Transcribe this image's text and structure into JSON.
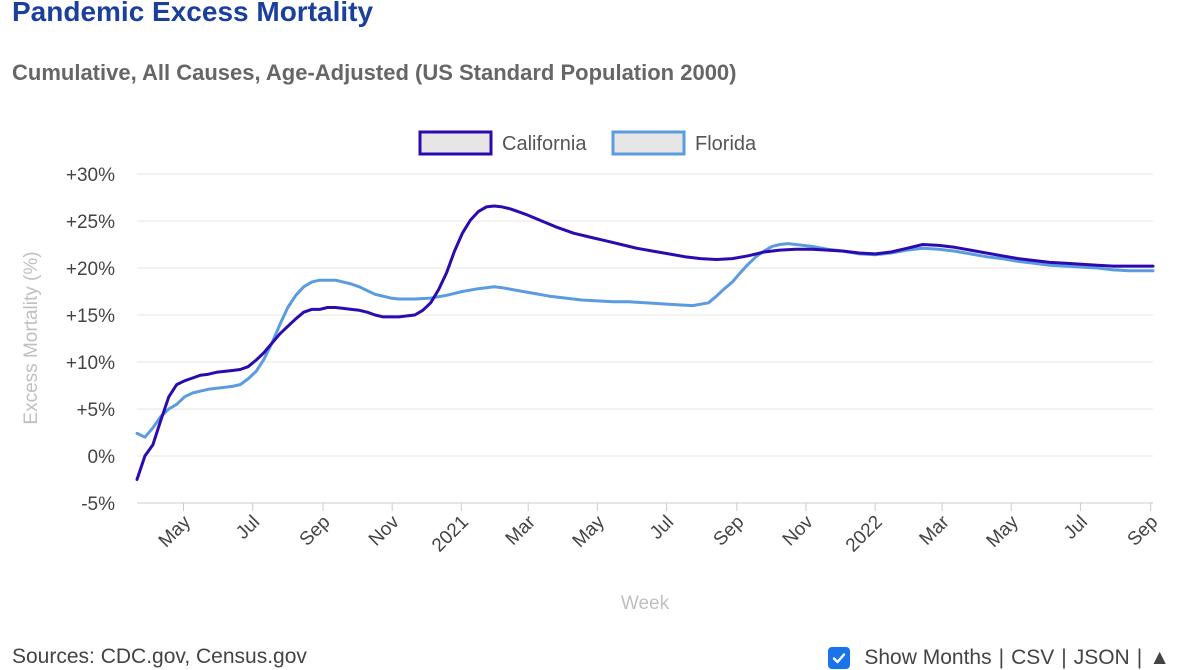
{
  "header": {
    "title": "Pandemic Excess Mortality",
    "subtitle": "Cumulative, All Causes, Age-Adjusted (US Standard Population 2000)"
  },
  "footer": {
    "sources": "Sources: CDC.gov, Census.gov",
    "show_months_label": "Show Months",
    "show_months_checked": true,
    "csv_label": "CSV",
    "json_label": "JSON",
    "separator": "|",
    "scroll_top_icon": "▲"
  },
  "colors": {
    "california": "#2b0ab0",
    "florida": "#5b9bdf",
    "grid": "#e6e6e6",
    "axis_text": "#444444",
    "axis_title": "#c0c0c0"
  },
  "chart_data": {
    "type": "line",
    "xlabel": "Week",
    "ylabel": "Excess Mortality (%)",
    "ylim": [
      -5,
      30
    ],
    "xlim": [
      "2020-03-21",
      "2022-09-03"
    ],
    "grid": true,
    "legend_position": "top-center",
    "y_ticks": [
      {
        "value": 30,
        "label": "+30%"
      },
      {
        "value": 25,
        "label": "+25%"
      },
      {
        "value": 20,
        "label": "+20%"
      },
      {
        "value": 15,
        "label": "+15%"
      },
      {
        "value": 10,
        "label": "+10%"
      },
      {
        "value": 5,
        "label": "+5%"
      },
      {
        "value": 0,
        "label": "0%"
      },
      {
        "value": -5,
        "label": "-5%"
      }
    ],
    "x_ticks": [
      {
        "date": "2020-05-01",
        "label": "May"
      },
      {
        "date": "2020-07-01",
        "label": "Jul"
      },
      {
        "date": "2020-09-01",
        "label": "Sep"
      },
      {
        "date": "2020-11-01",
        "label": "Nov"
      },
      {
        "date": "2021-01-01",
        "label": "2021"
      },
      {
        "date": "2021-03-01",
        "label": "Mar"
      },
      {
        "date": "2021-05-01",
        "label": "May"
      },
      {
        "date": "2021-07-01",
        "label": "Jul"
      },
      {
        "date": "2021-09-01",
        "label": "Sep"
      },
      {
        "date": "2021-11-01",
        "label": "Nov"
      },
      {
        "date": "2022-01-01",
        "label": "2022"
      },
      {
        "date": "2022-03-01",
        "label": "Mar"
      },
      {
        "date": "2022-05-01",
        "label": "May"
      },
      {
        "date": "2022-07-01",
        "label": "Jul"
      },
      {
        "date": "2022-09-01",
        "label": "Sep"
      }
    ],
    "series": [
      {
        "name": "California",
        "color": "#2b0ab0",
        "points": [
          [
            "2020-03-21",
            -2.5
          ],
          [
            "2020-03-28",
            0.0
          ],
          [
            "2020-04-04",
            1.2
          ],
          [
            "2020-04-11",
            3.8
          ],
          [
            "2020-04-18",
            6.3
          ],
          [
            "2020-04-25",
            7.6
          ],
          [
            "2020-05-02",
            8.0
          ],
          [
            "2020-05-09",
            8.3
          ],
          [
            "2020-05-16",
            8.6
          ],
          [
            "2020-05-23",
            8.7
          ],
          [
            "2020-05-30",
            8.9
          ],
          [
            "2020-06-06",
            9.0
          ],
          [
            "2020-06-13",
            9.1
          ],
          [
            "2020-06-20",
            9.2
          ],
          [
            "2020-06-27",
            9.5
          ],
          [
            "2020-07-04",
            10.2
          ],
          [
            "2020-07-11",
            11.0
          ],
          [
            "2020-07-18",
            12.0
          ],
          [
            "2020-07-25",
            13.0
          ],
          [
            "2020-08-01",
            13.8
          ],
          [
            "2020-08-08",
            14.6
          ],
          [
            "2020-08-15",
            15.3
          ],
          [
            "2020-08-22",
            15.6
          ],
          [
            "2020-08-29",
            15.6
          ],
          [
            "2020-09-05",
            15.8
          ],
          [
            "2020-09-12",
            15.8
          ],
          [
            "2020-09-19",
            15.7
          ],
          [
            "2020-09-26",
            15.6
          ],
          [
            "2020-10-03",
            15.5
          ],
          [
            "2020-10-10",
            15.3
          ],
          [
            "2020-10-17",
            15.0
          ],
          [
            "2020-10-24",
            14.8
          ],
          [
            "2020-10-31",
            14.8
          ],
          [
            "2020-11-07",
            14.8
          ],
          [
            "2020-11-14",
            14.9
          ],
          [
            "2020-11-21",
            15.0
          ],
          [
            "2020-11-28",
            15.5
          ],
          [
            "2020-12-05",
            16.3
          ],
          [
            "2020-12-12",
            17.7
          ],
          [
            "2020-12-19",
            19.5
          ],
          [
            "2020-12-26",
            21.8
          ],
          [
            "2021-01-02",
            23.7
          ],
          [
            "2021-01-09",
            25.1
          ],
          [
            "2021-01-16",
            26.0
          ],
          [
            "2021-01-23",
            26.5
          ],
          [
            "2021-01-30",
            26.6
          ],
          [
            "2021-02-06",
            26.5
          ],
          [
            "2021-02-13",
            26.3
          ],
          [
            "2021-02-20",
            26.0
          ],
          [
            "2021-02-27",
            25.7
          ],
          [
            "2021-03-13",
            25.0
          ],
          [
            "2021-03-27",
            24.3
          ],
          [
            "2021-04-10",
            23.7
          ],
          [
            "2021-04-24",
            23.3
          ],
          [
            "2021-05-08",
            22.9
          ],
          [
            "2021-05-22",
            22.5
          ],
          [
            "2021-06-05",
            22.1
          ],
          [
            "2021-06-19",
            21.8
          ],
          [
            "2021-07-03",
            21.5
          ],
          [
            "2021-07-17",
            21.2
          ],
          [
            "2021-07-31",
            21.0
          ],
          [
            "2021-08-14",
            20.9
          ],
          [
            "2021-08-28",
            21.0
          ],
          [
            "2021-09-11",
            21.3
          ],
          [
            "2021-09-25",
            21.7
          ],
          [
            "2021-10-09",
            21.9
          ],
          [
            "2021-10-23",
            22.0
          ],
          [
            "2021-11-06",
            22.0
          ],
          [
            "2021-11-20",
            21.9
          ],
          [
            "2021-12-04",
            21.8
          ],
          [
            "2021-12-18",
            21.6
          ],
          [
            "2022-01-01",
            21.5
          ],
          [
            "2022-01-15",
            21.7
          ],
          [
            "2022-01-29",
            22.1
          ],
          [
            "2022-02-12",
            22.5
          ],
          [
            "2022-02-26",
            22.4
          ],
          [
            "2022-03-12",
            22.2
          ],
          [
            "2022-03-26",
            21.9
          ],
          [
            "2022-04-09",
            21.6
          ],
          [
            "2022-04-23",
            21.3
          ],
          [
            "2022-05-07",
            21.0
          ],
          [
            "2022-05-21",
            20.8
          ],
          [
            "2022-06-04",
            20.6
          ],
          [
            "2022-06-18",
            20.5
          ],
          [
            "2022-07-02",
            20.4
          ],
          [
            "2022-07-16",
            20.3
          ],
          [
            "2022-07-30",
            20.2
          ],
          [
            "2022-08-13",
            20.2
          ],
          [
            "2022-08-27",
            20.2
          ],
          [
            "2022-09-03",
            20.2
          ]
        ]
      },
      {
        "name": "Florida",
        "color": "#5b9bdf",
        "points": [
          [
            "2020-03-21",
            2.4
          ],
          [
            "2020-03-28",
            2.0
          ],
          [
            "2020-04-04",
            3.0
          ],
          [
            "2020-04-11",
            4.2
          ],
          [
            "2020-04-18",
            5.0
          ],
          [
            "2020-04-25",
            5.5
          ],
          [
            "2020-05-02",
            6.3
          ],
          [
            "2020-05-09",
            6.7
          ],
          [
            "2020-05-16",
            6.9
          ],
          [
            "2020-05-23",
            7.1
          ],
          [
            "2020-05-30",
            7.2
          ],
          [
            "2020-06-06",
            7.3
          ],
          [
            "2020-06-13",
            7.4
          ],
          [
            "2020-06-20",
            7.6
          ],
          [
            "2020-06-27",
            8.2
          ],
          [
            "2020-07-04",
            9.0
          ],
          [
            "2020-07-11",
            10.3
          ],
          [
            "2020-07-18",
            12.0
          ],
          [
            "2020-07-25",
            14.0
          ],
          [
            "2020-08-01",
            15.8
          ],
          [
            "2020-08-08",
            17.1
          ],
          [
            "2020-08-15",
            18.0
          ],
          [
            "2020-08-22",
            18.5
          ],
          [
            "2020-08-29",
            18.7
          ],
          [
            "2020-09-05",
            18.7
          ],
          [
            "2020-09-12",
            18.7
          ],
          [
            "2020-09-19",
            18.5
          ],
          [
            "2020-09-26",
            18.3
          ],
          [
            "2020-10-03",
            18.0
          ],
          [
            "2020-10-10",
            17.6
          ],
          [
            "2020-10-17",
            17.2
          ],
          [
            "2020-10-24",
            17.0
          ],
          [
            "2020-10-31",
            16.8
          ],
          [
            "2020-11-07",
            16.7
          ],
          [
            "2020-11-14",
            16.7
          ],
          [
            "2020-11-21",
            16.7
          ],
          [
            "2020-12-05",
            16.8
          ],
          [
            "2020-12-19",
            17.1
          ],
          [
            "2021-01-02",
            17.5
          ],
          [
            "2021-01-16",
            17.8
          ],
          [
            "2021-01-30",
            18.0
          ],
          [
            "2021-02-06",
            17.9
          ],
          [
            "2021-02-20",
            17.6
          ],
          [
            "2021-03-06",
            17.3
          ],
          [
            "2021-03-20",
            17.0
          ],
          [
            "2021-04-03",
            16.8
          ],
          [
            "2021-04-17",
            16.6
          ],
          [
            "2021-05-01",
            16.5
          ],
          [
            "2021-05-15",
            16.4
          ],
          [
            "2021-05-29",
            16.4
          ],
          [
            "2021-06-12",
            16.3
          ],
          [
            "2021-06-26",
            16.2
          ],
          [
            "2021-07-10",
            16.1
          ],
          [
            "2021-07-24",
            16.0
          ],
          [
            "2021-08-07",
            16.3
          ],
          [
            "2021-08-14",
            17.0
          ],
          [
            "2021-08-21",
            17.8
          ],
          [
            "2021-08-28",
            18.5
          ],
          [
            "2021-09-04",
            19.5
          ],
          [
            "2021-09-11",
            20.4
          ],
          [
            "2021-09-18",
            21.2
          ],
          [
            "2021-09-25",
            21.8
          ],
          [
            "2021-10-02",
            22.3
          ],
          [
            "2021-10-09",
            22.5
          ],
          [
            "2021-10-16",
            22.6
          ],
          [
            "2021-10-23",
            22.5
          ],
          [
            "2021-11-06",
            22.3
          ],
          [
            "2021-11-20",
            22.0
          ],
          [
            "2021-12-04",
            21.8
          ],
          [
            "2021-12-18",
            21.5
          ],
          [
            "2022-01-01",
            21.4
          ],
          [
            "2022-01-15",
            21.6
          ],
          [
            "2022-01-29",
            21.9
          ],
          [
            "2022-02-12",
            22.1
          ],
          [
            "2022-02-26",
            22.0
          ],
          [
            "2022-03-12",
            21.8
          ],
          [
            "2022-03-26",
            21.5
          ],
          [
            "2022-04-09",
            21.2
          ],
          [
            "2022-04-23",
            21.0
          ],
          [
            "2022-05-07",
            20.7
          ],
          [
            "2022-05-21",
            20.5
          ],
          [
            "2022-06-04",
            20.3
          ],
          [
            "2022-06-18",
            20.2
          ],
          [
            "2022-07-02",
            20.1
          ],
          [
            "2022-07-16",
            20.0
          ],
          [
            "2022-07-30",
            19.8
          ],
          [
            "2022-08-13",
            19.7
          ],
          [
            "2022-08-27",
            19.7
          ],
          [
            "2022-09-03",
            19.7
          ]
        ]
      }
    ]
  }
}
